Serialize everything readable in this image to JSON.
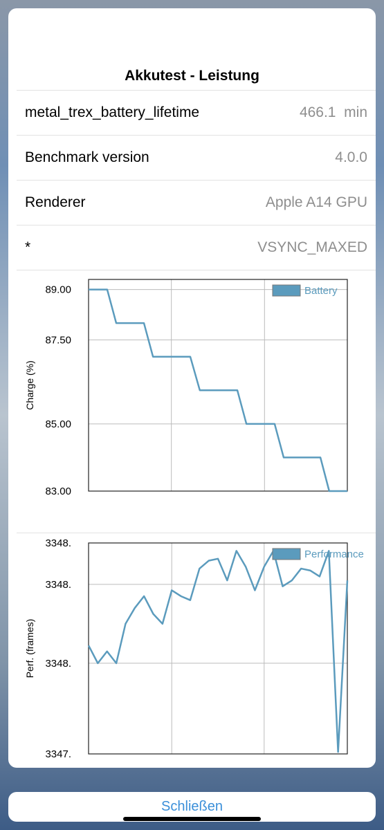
{
  "title": "Akkutest - Leistung",
  "rows": [
    {
      "label": "metal_trex_battery_lifetime",
      "value": "466.1  min"
    },
    {
      "label": "Benchmark version",
      "value": "4.0.0"
    },
    {
      "label": "Renderer",
      "value": "Apple A14 GPU"
    },
    {
      "label": "*",
      "value": "VSYNC_MAXED"
    }
  ],
  "chart_data": [
    {
      "type": "line",
      "y_label": "Charge (%)",
      "legend": "upper right",
      "grid": true,
      "xlim": [
        0,
        100
      ],
      "xticks": [
        32,
        68
      ],
      "ylim": [
        83,
        89.3
      ],
      "yticks": [
        {
          "value": 89,
          "label": "89.00"
        },
        {
          "value": 87.5,
          "label": "87.50"
        },
        {
          "value": 85,
          "label": "85.00"
        },
        {
          "value": 83,
          "label": "83.00"
        }
      ],
      "x": [
        0,
        7.2,
        10.7,
        21.4,
        24.9,
        39.3,
        43,
        57.5,
        61,
        71.9,
        75.4,
        89.6,
        93,
        100
      ],
      "series": [
        {
          "name": "Battery",
          "color": "#5b9bbd",
          "values": [
            89,
            89,
            88,
            88,
            87,
            87,
            86,
            86,
            85,
            85,
            84,
            84,
            83,
            83
          ]
        }
      ]
    },
    {
      "type": "line",
      "y_label": "Perf. (frames)",
      "legend": "upper right",
      "grid": true,
      "xlim": [
        0,
        28
      ],
      "xticks": [
        9,
        19
      ],
      "ylim": [
        3347.74,
        3348.81
      ],
      "yticks": [
        {
          "value": 3348.81,
          "label": "3348."
        },
        {
          "value": 3348.6,
          "label": "3348."
        },
        {
          "value": 3348.2,
          "label": "3348."
        },
        {
          "value": 3347.74,
          "label": "3347."
        }
      ],
      "x": [
        0,
        1,
        2,
        3,
        4,
        5,
        6,
        7,
        8,
        9,
        10,
        11,
        12,
        13,
        14,
        15,
        16,
        17,
        18,
        19,
        20,
        21,
        22,
        23,
        24,
        25,
        26,
        27,
        28
      ],
      "series": [
        {
          "name": "Performance",
          "color": "#5b9bbd",
          "values": [
            3348.29,
            3348.2,
            3348.26,
            3348.2,
            3348.4,
            3348.48,
            3348.54,
            3348.45,
            3348.4,
            3348.57,
            3348.54,
            3348.52,
            3348.68,
            3348.72,
            3348.73,
            3348.62,
            3348.77,
            3348.69,
            3348.57,
            3348.69,
            3348.77,
            3348.59,
            3348.62,
            3348.68,
            3348.67,
            3348.64,
            3348.77,
            3347.75,
            3348.62
          ]
        }
      ]
    }
  ],
  "button": "Schließen"
}
